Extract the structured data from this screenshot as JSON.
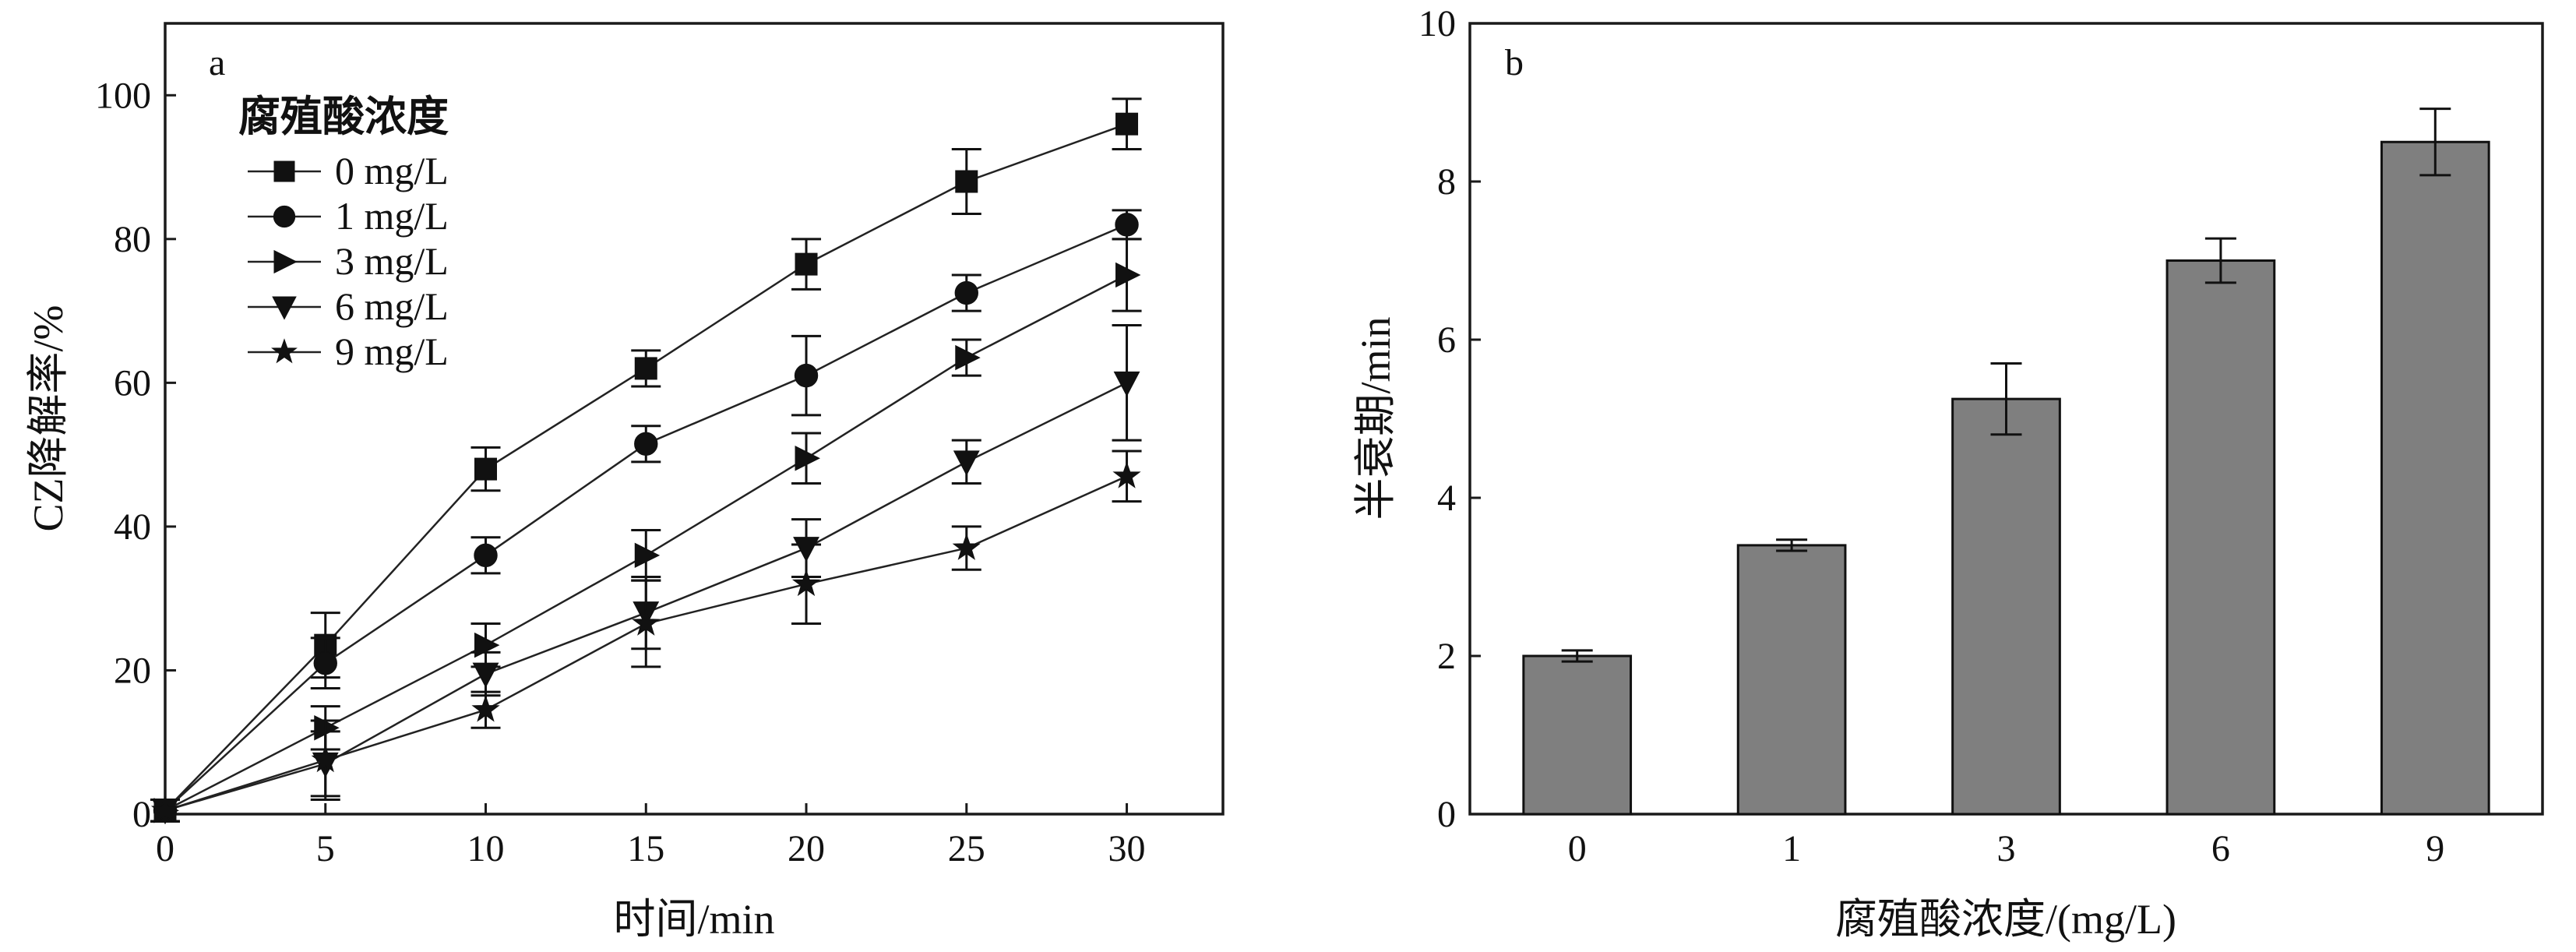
{
  "chart_data": [
    {
      "type": "line",
      "panel_label": "a",
      "xlabel": "时间/min",
      "ylabel": "CZ降解率/%",
      "xlim": [
        0,
        33
      ],
      "ylim": [
        0,
        110
      ],
      "xticks": [
        0,
        5,
        10,
        15,
        20,
        25,
        30
      ],
      "yticks": [
        0,
        20,
        40,
        60,
        80,
        100
      ],
      "x": [
        0,
        5,
        10,
        15,
        20,
        25,
        30
      ],
      "legend_title": "腐殖酸浓度",
      "legend_position": "top-left",
      "series": [
        {
          "name": "0 mg/L",
          "marker": "square",
          "values": [
            0.5,
            23.5,
            48.0,
            62.0,
            76.5,
            88.0,
            96.0
          ],
          "errors": [
            1.5,
            4.5,
            3.0,
            2.5,
            3.5,
            4.5,
            3.5
          ]
        },
        {
          "name": "1 mg/L",
          "marker": "circle",
          "values": [
            0.5,
            21.0,
            36.0,
            51.5,
            61.0,
            72.5,
            82.0
          ],
          "errors": [
            1.5,
            3.5,
            2.5,
            2.5,
            5.5,
            2.5,
            2.0
          ]
        },
        {
          "name": "3 mg/L",
          "marker": "triangle-right",
          "values": [
            0.5,
            12.0,
            23.5,
            36.0,
            49.5,
            63.5,
            75.0
          ],
          "errors": [
            1.5,
            3.0,
            3.0,
            3.5,
            3.5,
            2.5,
            5.0
          ]
        },
        {
          "name": "6 mg/L",
          "marker": "triangle-down",
          "values": [
            0.5,
            7.0,
            19.5,
            28.0,
            37.0,
            49.0,
            60.0
          ],
          "errors": [
            1.5,
            4.5,
            3.0,
            5.0,
            4.0,
            3.0,
            8.0
          ]
        },
        {
          "name": "9 mg/L",
          "marker": "star",
          "values": [
            0.5,
            7.5,
            14.5,
            26.5,
            32.0,
            37.0,
            47.0
          ],
          "errors": [
            1.5,
            5.5,
            2.5,
            6.0,
            5.5,
            3.0,
            3.5
          ]
        }
      ]
    },
    {
      "type": "bar",
      "panel_label": "b",
      "xlabel": "腐殖酸浓度/(mg/L)",
      "ylabel": "半衰期/min",
      "ylim": [
        0,
        10
      ],
      "yticks": [
        0,
        2,
        4,
        6,
        8,
        10
      ],
      "categories": [
        "0",
        "1",
        "3",
        "6",
        "9"
      ],
      "values": [
        2.0,
        3.4,
        5.25,
        7.0,
        8.5
      ],
      "errors": [
        0.07,
        0.07,
        0.45,
        0.28,
        0.42
      ],
      "bar_color": "#7f7f7f"
    }
  ]
}
